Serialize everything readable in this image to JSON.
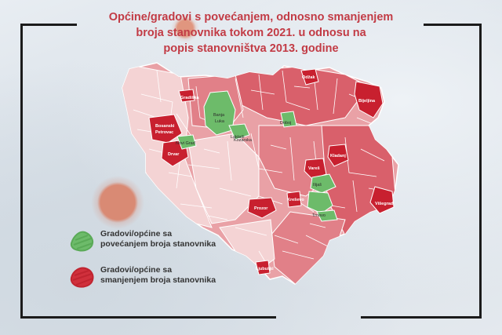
{
  "title": {
    "line1": "Općine/gradovi s povećanjem, odnosno smanjenjem",
    "line2": "broja stanovnika tokom 2021. u odnosu na",
    "line3": "popis stanovništva 2013. godine"
  },
  "colors": {
    "growth": "#6dbb6a",
    "decline_strong": "#c8202f",
    "decline": "#d9606b",
    "decline_light": "#e9a1a6",
    "decline_pale": "#f4d3d4",
    "borders": "#ffffff",
    "title": "#c23b45"
  },
  "legend": {
    "growth_line1": "Gradovi/općine sa",
    "growth_line2": "povećanjem broja stanovnika",
    "decline_line1": "Gradovi/općine sa",
    "decline_line2": "smanjenjem broja stanovnika"
  },
  "labels": {
    "banja_luka_1": "Banja",
    "banja_luka_2": "Luka",
    "bosanski_petrovac_1": "Bosanski",
    "bosanski_petrovac_2": "Petrovac",
    "drvar": "Drvar",
    "laktasi": "Laktaši",
    "doboj": "Doboj",
    "bijeljina": "Bijeljina",
    "odzak": "Odžak",
    "kladanj": "Kladanj",
    "vares": "Vareš",
    "ilijas": "Ilijaš",
    "visegrad": "Višegrad",
    "prozor": "Prozor",
    "kresevo": "Kreševo",
    "trnovo": "Trnovo",
    "ljubuski": "Ljubuški",
    "novi_grad": "Novi Grad",
    "kozarska": "Kozarska",
    "gradiska": "Gradiška"
  }
}
